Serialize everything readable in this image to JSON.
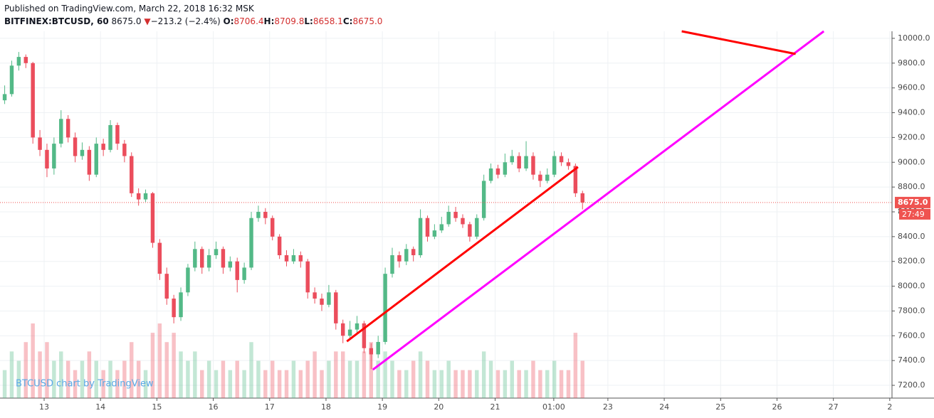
{
  "chart_data": {
    "type": "candlestick",
    "title": "Published on TradingView.com, March 22, 2018 16:32 MSK",
    "legend": {
      "symbol": "BITFINEX:BTCUSD, 60",
      "last": "8675.0",
      "arrow": "▼",
      "change": "−213.2 (−2.4%)",
      "items": [
        {
          "key": "O:",
          "value": "8706.4"
        },
        {
          "key": "H:",
          "value": "8709.8"
        },
        {
          "key": "L:",
          "value": "8658.1"
        },
        {
          "key": "C:",
          "value": "8675.0"
        }
      ]
    },
    "watermark": "BTCUSD chart by TradingView",
    "x": [
      12.3,
      12.425,
      12.55,
      12.675,
      12.8,
      12.925,
      13.05,
      13.175,
      13.3,
      13.425,
      13.55,
      13.675,
      13.8,
      13.925,
      14.05,
      14.175,
      14.3,
      14.425,
      14.55,
      14.675,
      14.8,
      14.925,
      15.05,
      15.175,
      15.3,
      15.425,
      15.55,
      15.675,
      15.8,
      15.925,
      16.05,
      16.175,
      16.3,
      16.425,
      16.55,
      16.675,
      16.8,
      16.925,
      17.05,
      17.175,
      17.3,
      17.425,
      17.55,
      17.675,
      17.8,
      17.925,
      18.05,
      18.175,
      18.3,
      18.425,
      18.55,
      18.675,
      18.8,
      18.925,
      19.05,
      19.175,
      19.3,
      19.425,
      19.55,
      19.675,
      19.8,
      19.925,
      20.05,
      20.175,
      20.3,
      20.425,
      20.55,
      20.675,
      20.8,
      20.925,
      21.05,
      21.175,
      21.3,
      21.425,
      21.55,
      21.675,
      21.8,
      21.925,
      22.05,
      22.175,
      22.3,
      22.425,
      22.55
    ],
    "open": [
      9500,
      9550,
      9780,
      9850,
      9800,
      9200,
      9100,
      8950,
      9150,
      9350,
      9200,
      9050,
      9100,
      8900,
      9150,
      9100,
      9300,
      9150,
      9050,
      8750,
      8700,
      8750,
      8350,
      8100,
      7900,
      7750,
      7950,
      8150,
      8300,
      8150,
      8250,
      8300,
      8150,
      8200,
      8050,
      8150,
      8550,
      8600,
      8550,
      8400,
      8250,
      8200,
      8250,
      8200,
      7950,
      7900,
      7850,
      7950,
      7700,
      7600,
      7650,
      7700,
      7500,
      7450,
      7550,
      8100,
      8250,
      8200,
      8300,
      8250,
      8550,
      8400,
      8450,
      8500,
      8600,
      8550,
      8500,
      8400,
      8550,
      8850,
      8950,
      8900,
      9000,
      9050,
      8950,
      9050,
      8900,
      8850,
      8900,
      9050,
      9000,
      8970,
      8750
    ],
    "high": [
      9620,
      9820,
      9890,
      9870,
      9810,
      9260,
      9150,
      9200,
      9420,
      9380,
      9240,
      9160,
      9130,
      9200,
      9190,
      9340,
      9320,
      9180,
      9080,
      8790,
      8780,
      8760,
      8380,
      8150,
      7930,
      7990,
      8180,
      8360,
      8320,
      8300,
      8360,
      8320,
      8240,
      8230,
      8190,
      8600,
      8650,
      8630,
      8570,
      8420,
      8290,
      8300,
      8280,
      8220,
      7990,
      7940,
      8010,
      7970,
      7730,
      7720,
      7760,
      7720,
      7540,
      7600,
      8150,
      8310,
      8280,
      8340,
      8320,
      8620,
      8570,
      8500,
      8560,
      8650,
      8640,
      8580,
      8520,
      8580,
      8900,
      8990,
      8980,
      9070,
      9100,
      9080,
      9170,
      9080,
      8930,
      8950,
      9090,
      9080,
      9030,
      8990,
      8770
    ],
    "low": [
      9470,
      9530,
      9740,
      9760,
      9150,
      9050,
      8880,
      8900,
      9120,
      9160,
      9000,
      9020,
      8850,
      8880,
      9050,
      9080,
      9100,
      9000,
      8720,
      8650,
      8680,
      8310,
      8050,
      7850,
      7700,
      7720,
      7920,
      8120,
      8100,
      8120,
      8220,
      8100,
      8120,
      7950,
      8020,
      8130,
      8520,
      8500,
      8370,
      8220,
      8160,
      8180,
      8150,
      7900,
      7860,
      7800,
      7830,
      7650,
      7540,
      7570,
      7620,
      7460,
      7330,
      7420,
      7530,
      8070,
      8150,
      8170,
      8200,
      8230,
      8360,
      8380,
      8430,
      8480,
      8520,
      8470,
      8360,
      8380,
      8530,
      8830,
      8870,
      8880,
      8980,
      8920,
      8930,
      8860,
      8800,
      8830,
      8880,
      8970,
      8940,
      8720,
      8620
    ],
    "close": [
      9550,
      9780,
      9850,
      9800,
      9200,
      9100,
      8950,
      9150,
      9350,
      9200,
      9050,
      9100,
      8900,
      9150,
      9100,
      9300,
      9150,
      9050,
      8750,
      8700,
      8750,
      8350,
      8100,
      7900,
      7750,
      7950,
      8150,
      8300,
      8150,
      8250,
      8300,
      8150,
      8200,
      8050,
      8150,
      8550,
      8600,
      8550,
      8400,
      8250,
      8200,
      8250,
      8200,
      7950,
      7900,
      7850,
      7950,
      7700,
      7600,
      7650,
      7700,
      7500,
      7450,
      7550,
      8100,
      8250,
      8200,
      8300,
      8250,
      8550,
      8400,
      8450,
      8500,
      8600,
      8550,
      8500,
      8400,
      8550,
      8850,
      8950,
      8900,
      9000,
      9050,
      8950,
      9050,
      8900,
      8850,
      8900,
      9050,
      9000,
      8970,
      8750,
      8675
    ],
    "volume": [
      3,
      5,
      4,
      6,
      8,
      5,
      6,
      4,
      5,
      4,
      3,
      4,
      5,
      4,
      3,
      4,
      3,
      4,
      6,
      4,
      3,
      7,
      8,
      6,
      7,
      5,
      4,
      5,
      3,
      4,
      3,
      4,
      3,
      4,
      3,
      6,
      4,
      3,
      4,
      3,
      3,
      4,
      3,
      4,
      5,
      3,
      4,
      5,
      5,
      4,
      4,
      5,
      6,
      4,
      5,
      4,
      3,
      3,
      4,
      5,
      4,
      3,
      3,
      4,
      3,
      3,
      3,
      3,
      5,
      4,
      3,
      3,
      4,
      3,
      3,
      4,
      3,
      3,
      4,
      3,
      3,
      7,
      4
    ],
    "up_color": "#53b987",
    "down_color": "#eb4d5c",
    "xlim": [
      12.217,
      28.04
    ],
    "ylim": [
      7097,
      10057
    ],
    "xticks": [
      13,
      14,
      15,
      16,
      17,
      18,
      19,
      20,
      21,
      {
        "value": 22.04,
        "label": "01:00"
      },
      23,
      24,
      25,
      26,
      27,
      {
        "value": 28,
        "label": "2"
      }
    ],
    "yticks": [
      {
        "value": 7200,
        "label": "7200.0"
      },
      {
        "value": 7400,
        "label": "7400.0"
      },
      {
        "value": 7600,
        "label": "7600.0"
      },
      {
        "value": 7800,
        "label": "7800.0"
      },
      {
        "value": 8000,
        "label": "8000.0"
      },
      {
        "value": 8200,
        "label": "8200.0"
      },
      {
        "value": 8400,
        "label": "8400.0"
      },
      {
        "value": 8600,
        "label": "8600.0"
      },
      {
        "value": 8800,
        "label": "8800.0"
      },
      {
        "value": 9000,
        "label": "9000.0"
      },
      {
        "value": 9200,
        "label": "9200.0"
      },
      {
        "value": 9400,
        "label": "9400.0"
      },
      {
        "value": 9600,
        "label": "9600.0"
      },
      {
        "value": 9800,
        "label": "9800.0"
      },
      {
        "value": 10000,
        "label": "10000.0"
      }
    ],
    "grid": true,
    "last_price": {
      "value": 8675,
      "label": "8675.0",
      "color": "#ef5350"
    },
    "countdown": "27:49",
    "lines": [
      {
        "color": "#ff0000",
        "x": [
          18.37,
          22.47
        ],
        "y": [
          7555,
          8962
        ]
      },
      {
        "color": "#ff00ff",
        "x": [
          18.83,
          26.83
        ],
        "y": [
          7326,
          10057
        ]
      },
      {
        "color": "#ff0000",
        "x": [
          24.31,
          26.33
        ],
        "y": [
          10057,
          9874
        ]
      }
    ]
  }
}
